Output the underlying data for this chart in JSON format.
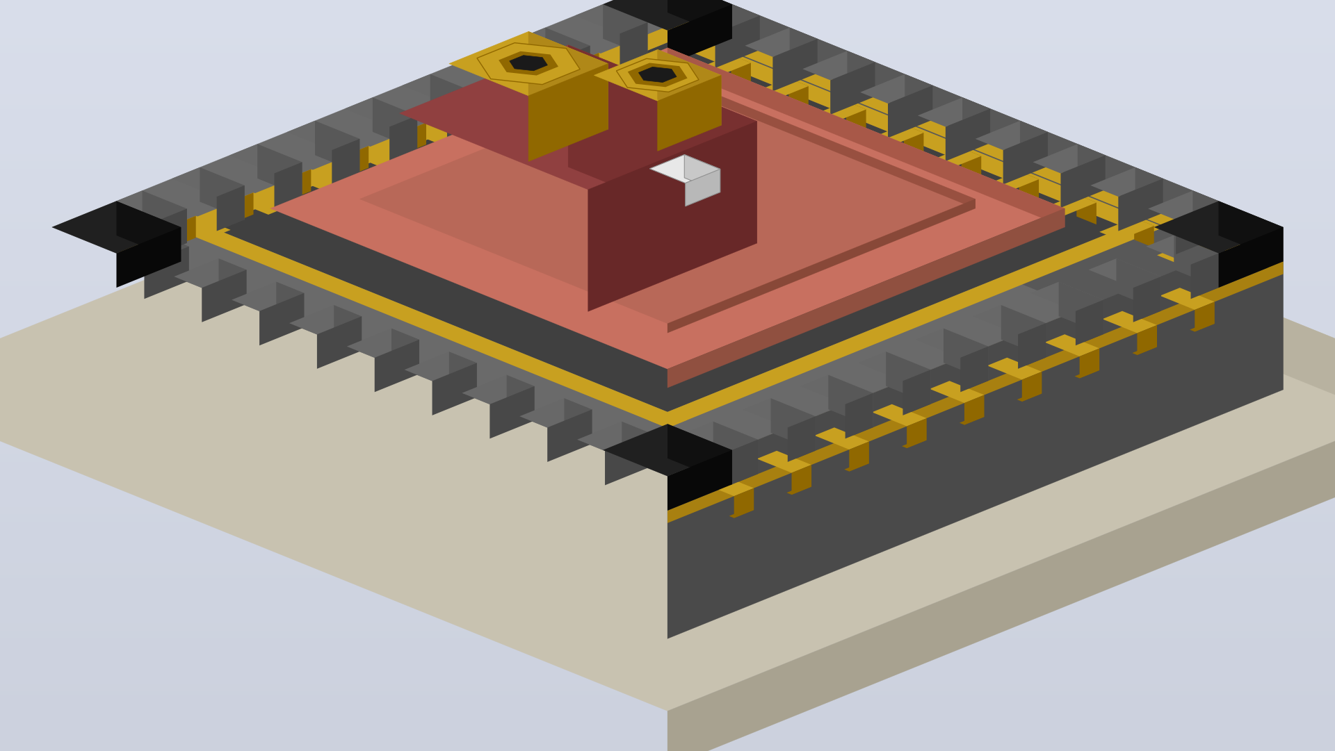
{
  "background_color": "#c8cdd8",
  "base_plate": {
    "color_top": "#c8c2b0",
    "color_left": "#b8b2a0",
    "color_right": "#a8a290"
  },
  "main_body": {
    "color_top": "#6a6a6a",
    "color_left": "#585858",
    "color_right": "#4a4a4a"
  },
  "inner_recess": {
    "color": "#404040"
  },
  "gold_frame": {
    "color": "#c8a020",
    "color_dark": "#a88010",
    "color_darker": "#806000"
  },
  "cantilever_block": {
    "color_top": "#904040",
    "color_left": "#783030",
    "color_right": "#682828"
  },
  "inner_platform": {
    "color_top": "#c87060",
    "color_left": "#a85848",
    "color_right": "#905040"
  },
  "inner_platform2": {
    "color_top": "#b86858",
    "color_left": "#985040",
    "color_right": "#884838"
  },
  "nuts": {
    "color_top": "#c8a020",
    "color_side": "#b08818",
    "color_dark": "#906800",
    "hole": "#1a1a1a"
  },
  "sample_cube": {
    "color_top": "#e8e8e8",
    "color_left": "#c8c8c8",
    "color_right": "#b8b8b8"
  },
  "pins": {
    "color": "#c8a020",
    "color_dark": "#906800"
  },
  "black_corners": {
    "color": "#202020",
    "color_dark": "#101010"
  },
  "tooth": {
    "color_top": "#686868",
    "color_left": "#585858",
    "color_right": "#484848"
  }
}
